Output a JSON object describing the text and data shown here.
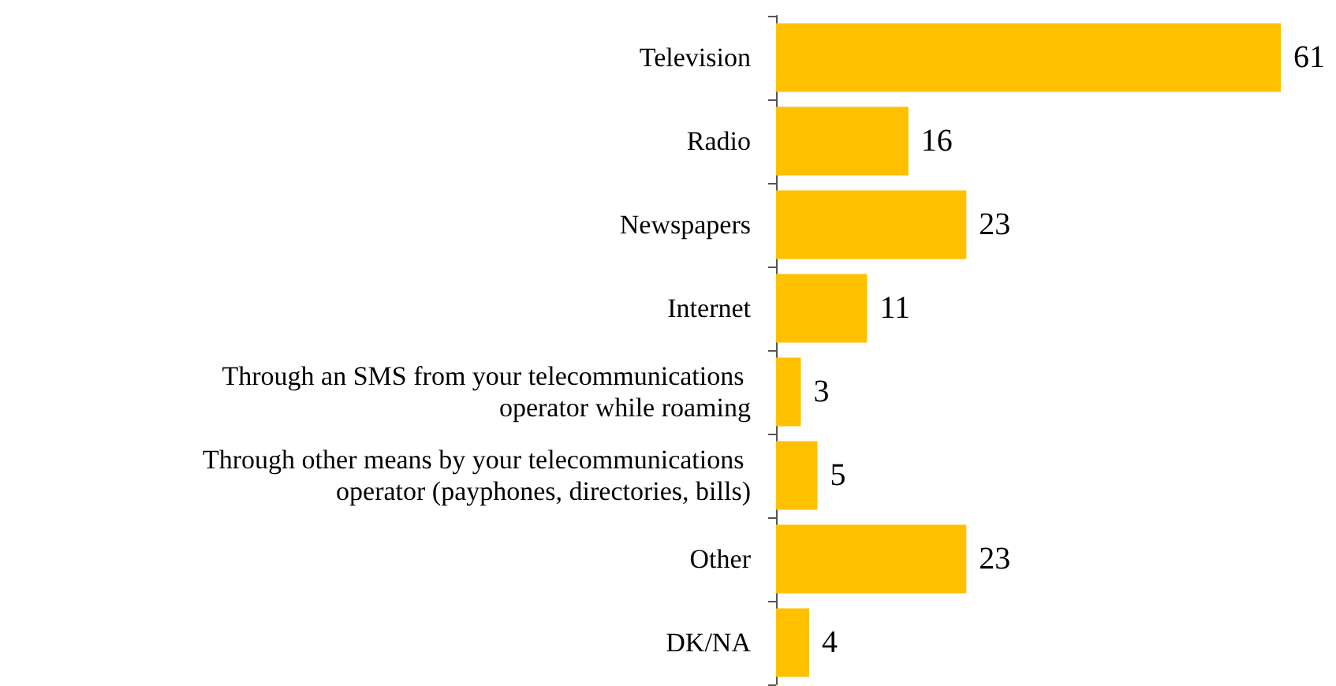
{
  "chart_data": {
    "type": "bar",
    "orientation": "horizontal",
    "categories": [
      "Television",
      "Radio",
      "Newspapers",
      "Internet",
      "Through an SMS from your telecommunications operator while roaming",
      "Through other means by your telecommunications operator (payphones, directories, bills)",
      "Other",
      "DK/NA"
    ],
    "values": [
      61,
      16,
      23,
      11,
      3,
      5,
      23,
      4
    ],
    "color": "#ffc000",
    "data_labels": true
  }
}
